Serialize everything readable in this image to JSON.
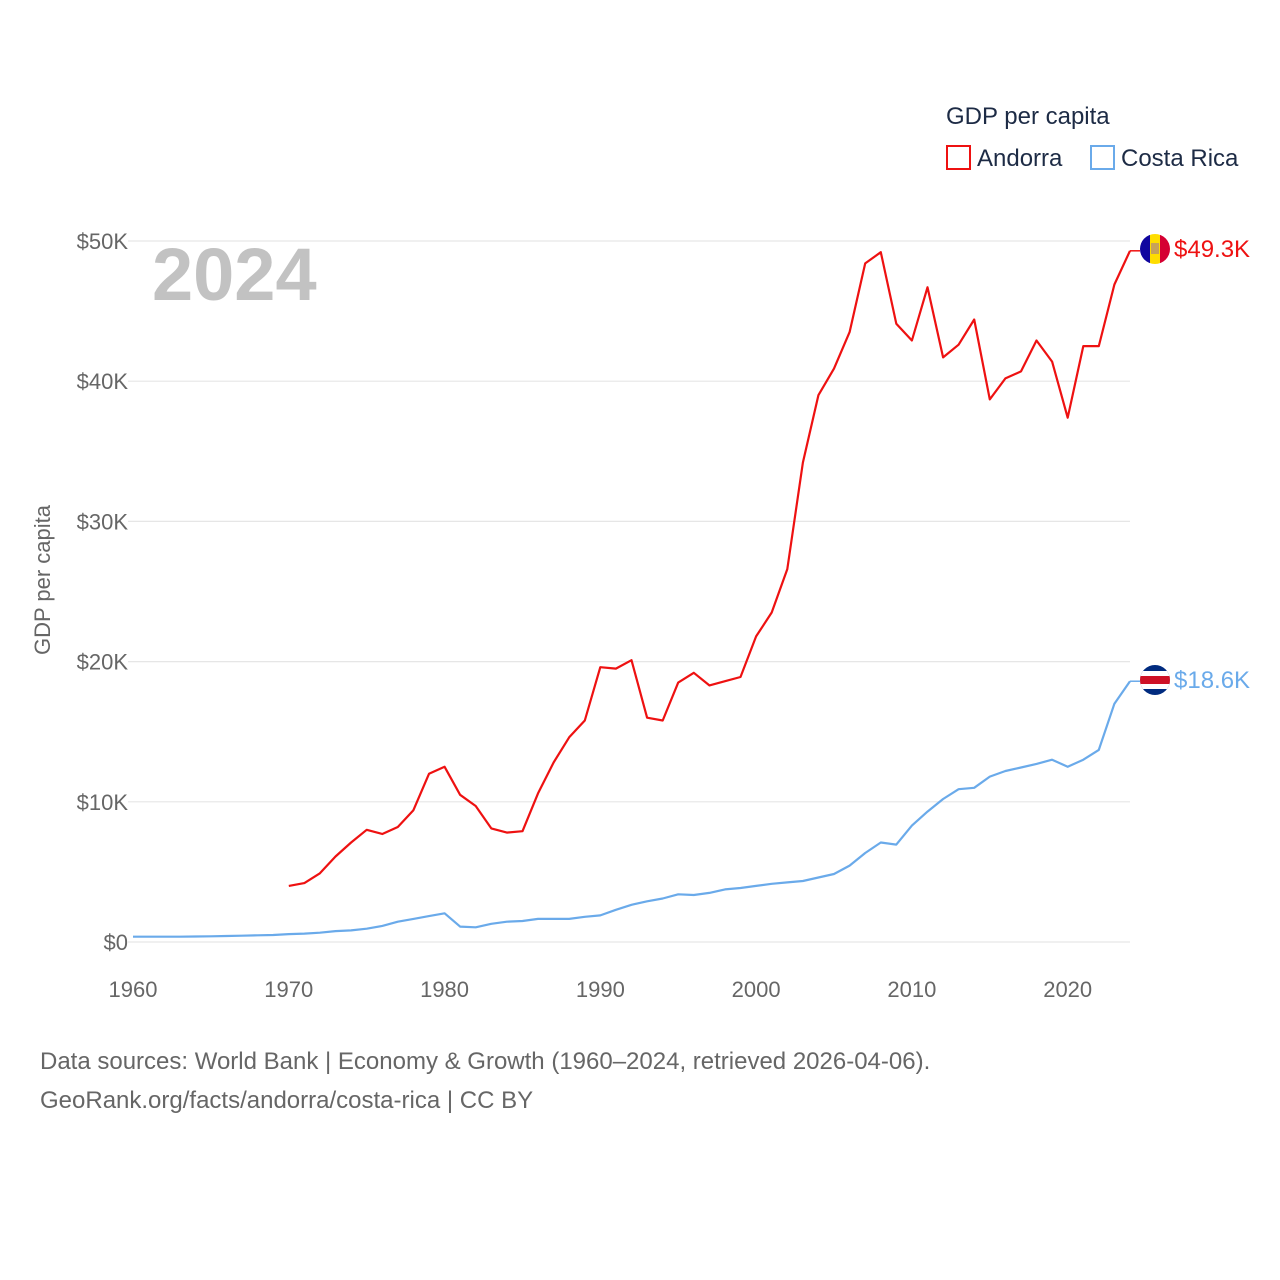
{
  "chart_data": {
    "type": "line",
    "title": "GDP per capita",
    "ylabel": "GDP per capita",
    "xlabel": "",
    "year_label": "2024",
    "xlim": [
      1960,
      2024
    ],
    "ylim": [
      0,
      50000
    ],
    "x_ticks": [
      "1960",
      "1970",
      "1980",
      "1990",
      "2000",
      "2010",
      "2020"
    ],
    "y_ticks": [
      {
        "value": 0,
        "label": "$0"
      },
      {
        "value": 10000,
        "label": "$10K"
      },
      {
        "value": 20000,
        "label": "$20K"
      },
      {
        "value": 30000,
        "label": "$30K"
      },
      {
        "value": 40000,
        "label": "$40K"
      },
      {
        "value": 50000,
        "label": "$50K"
      }
    ],
    "grid": true,
    "legend_position": "top-right",
    "legend_title": "GDP per capita",
    "series": [
      {
        "name": "Andorra",
        "color": "#ee1111",
        "end_label": "$49.3K",
        "start_year": 1970,
        "values": [
          4000,
          4200,
          4900,
          6100,
          7100,
          8000,
          7700,
          8200,
          9400,
          12000,
          12500,
          10500,
          9700,
          8100,
          7800,
          7900,
          10600,
          12800,
          14600,
          15800,
          19600,
          19500,
          20100,
          16000,
          15800,
          18500,
          19200,
          18300,
          18600,
          18900,
          21800,
          23500,
          26600,
          34200,
          39000,
          40900,
          43500,
          48400,
          49200,
          44100,
          42900,
          46700,
          41700,
          42600,
          44400,
          38700,
          40200,
          40700,
          42900,
          41400,
          37400,
          42500,
          42500,
          46900,
          49300
        ]
      },
      {
        "name": "Costa Rica",
        "color": "#6aaaea",
        "end_label": "$18.6K",
        "start_year": 1960,
        "values": [
          380,
          380,
          380,
          380,
          390,
          410,
          430,
          450,
          480,
          500,
          560,
          600,
          660,
          780,
          830,
          950,
          1150,
          1450,
          1650,
          1850,
          2050,
          1100,
          1050,
          1300,
          1450,
          1500,
          1650,
          1650,
          1650,
          1800,
          1900,
          2300,
          2650,
          2900,
          3100,
          3400,
          3350,
          3500,
          3750,
          3850,
          4000,
          4150,
          4250,
          4350,
          4600,
          4850,
          5450,
          6350,
          7100,
          6950,
          8300,
          9300,
          10200,
          10900,
          11000,
          11800,
          12200,
          12450,
          12700,
          13000,
          12500,
          13000,
          13700,
          17000,
          18600
        ]
      }
    ]
  },
  "footer": {
    "line1": "Data sources: World Bank | Economy & Growth (1960–2024, retrieved 2026-04-06).",
    "line2": "GeoRank.org/facts/andorra/costa-rica | CC BY"
  }
}
